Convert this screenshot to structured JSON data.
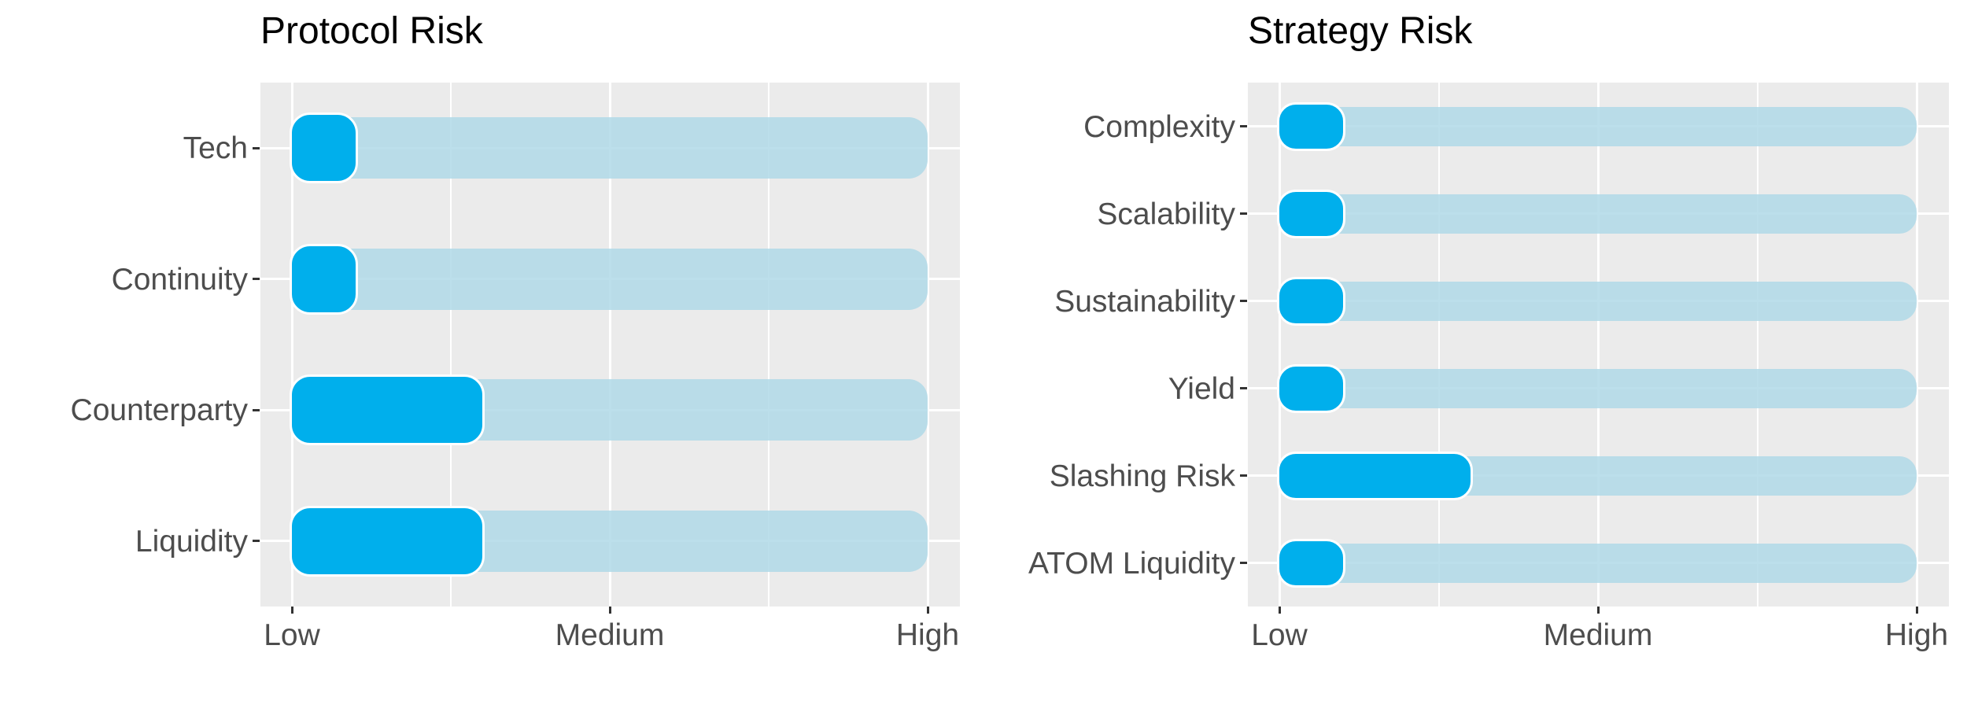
{
  "style": {
    "accent_fill": "#00afec",
    "track_fill": "#add8e6",
    "track_alpha": 0.82,
    "panel_bg": "#ebebeb",
    "grid_color": "#ffffff",
    "axis_text_color": "#4d4d4d",
    "tick_color": "#333333",
    "title_color": "#000000"
  },
  "chart_data": [
    {
      "type": "bar",
      "orientation": "horizontal",
      "title": "Protocol Risk",
      "categories": [
        "Tech",
        "Continuity",
        "Counterparty",
        "Liquidity"
      ],
      "values": [
        0.1,
        0.1,
        0.3,
        0.3
      ],
      "x_ticks": [
        "Low",
        "Medium",
        "High"
      ],
      "xlim": [
        0,
        1
      ],
      "xlabel": "",
      "ylabel": "",
      "grid": "white major + minor verticals, white major horizontals",
      "legend": "none",
      "note": "values are fractions of the Low-to-High track; each row has a full-length light-blue track from Low to High"
    },
    {
      "type": "bar",
      "orientation": "horizontal",
      "title": "Strategy Risk",
      "categories": [
        "Complexity",
        "Scalability",
        "Sustainability",
        "Yield",
        "Slashing Risk",
        "ATOM Liquidity"
      ],
      "values": [
        0.1,
        0.1,
        0.1,
        0.1,
        0.3,
        0.1
      ],
      "x_ticks": [
        "Low",
        "Medium",
        "High"
      ],
      "xlim": [
        0,
        1
      ],
      "xlabel": "",
      "ylabel": "",
      "grid": "white major + minor verticals, white major horizontals",
      "legend": "none",
      "note": "values are fractions of the Low-to-High track; each row has a full-length light-blue track from Low to High"
    }
  ]
}
